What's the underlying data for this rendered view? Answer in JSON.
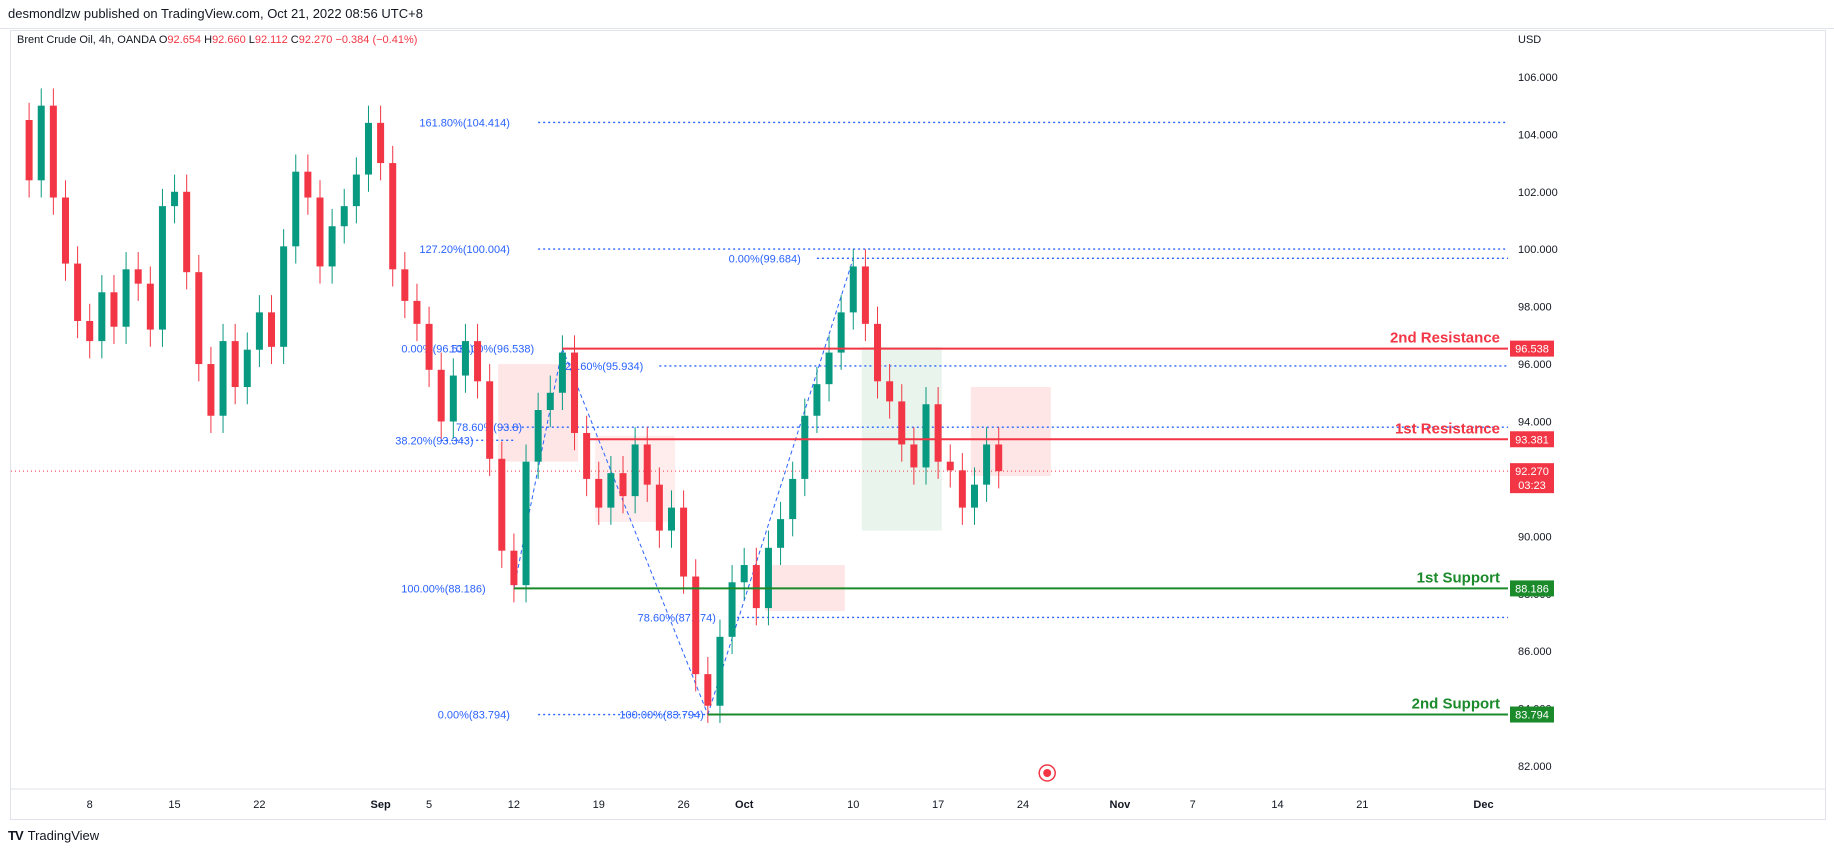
{
  "publisher_line": "desmondlzw published on TradingView.com, Oct 21, 2022 08:56 UTC+8",
  "footer_brand": "TradingView",
  "colors": {
    "up": "#089981",
    "down": "#f23645",
    "resistance": "#f23645",
    "support": "#1b8a2b",
    "fib": "#2962ff",
    "grid": "#f0f3fa"
  },
  "chart_data": {
    "type": "candlestick",
    "symbol": "Brent Crude Oil, 4h, OANDA",
    "ohlc_labels": {
      "O": "92.654",
      "H": "92.660",
      "L": "92.112",
      "C": "92.270",
      "change": "−0.384 (−0.41%)"
    },
    "currency": "USD",
    "y_ticks": [
      "106.000",
      "104.000",
      "102.000",
      "100.000",
      "98.000",
      "96.000",
      "94.000",
      "92.000",
      "90.000",
      "88.000",
      "86.000",
      "84.000",
      "82.000"
    ],
    "ylim": [
      81.2,
      107.6
    ],
    "x_ticks": [
      "8",
      "15",
      "22",
      "Sep",
      "5",
      "12",
      "19",
      "26",
      "Oct",
      "10",
      "17",
      "24",
      "Nov",
      "7",
      "14",
      "21",
      "Dec"
    ],
    "current_price": {
      "value": "92.270",
      "countdown": "03:23",
      "y": 92.27
    },
    "levels": [
      {
        "name": "2nd Resistance",
        "value": "96.538",
        "y": 96.538,
        "kind": "resistance"
      },
      {
        "name": "1st Resistance",
        "value": "93.381",
        "y": 93.381,
        "kind": "resistance"
      },
      {
        "name": "1st Support",
        "value": "88.186",
        "y": 88.186,
        "kind": "support"
      },
      {
        "name": "2nd Support",
        "value": "83.794",
        "y": 83.794,
        "kind": "support"
      }
    ],
    "fib_labels": [
      {
        "text": "161.80%(104.414)",
        "y": 104.414
      },
      {
        "text": "127.20%(100.004)",
        "y": 100.004
      },
      {
        "text": "0.00%(99.684)",
        "y": 99.684
      },
      {
        "text": "0.00%(96.538)",
        "y": 96.538
      },
      {
        "text": "100.00%(96.538)",
        "y": 96.538
      },
      {
        "text": "23.60%(95.934)",
        "y": 95.934
      },
      {
        "text": "78.60%(93.8)",
        "y": 93.8
      },
      {
        "text": "38.20%(93.343)",
        "y": 93.343
      },
      {
        "text": "100.00%(88.186)",
        "y": 88.186
      },
      {
        "text": "78.60%(87.174)",
        "y": 87.174
      },
      {
        "text": "100.00%(83.794)",
        "y": 83.794
      },
      {
        "text": "0.00%(83.794)",
        "y": 83.794
      }
    ],
    "swing_points": [
      [
        88.186,
        "Sep 12"
      ],
      [
        96.538,
        "Sep 16"
      ],
      [
        83.794,
        "Sep 28"
      ],
      [
        99.684,
        "Oct 10"
      ]
    ],
    "price_path": [
      [
        "Aug 2",
        104.5
      ],
      [
        "Aug 3",
        102.4
      ],
      [
        "Aug 4",
        105.0
      ],
      [
        "Aug 5",
        101.8
      ],
      [
        "Aug 6",
        99.5
      ],
      [
        "Aug 7",
        97.5
      ],
      [
        "Aug 8",
        96.8
      ],
      [
        "Aug 9",
        98.5
      ],
      [
        "Aug 10",
        97.3
      ],
      [
        "Aug 11",
        99.3
      ],
      [
        "Aug 12",
        98.8
      ],
      [
        "Aug 13",
        97.2
      ],
      [
        "Aug 14",
        101.5
      ],
      [
        "Aug 15",
        102.0
      ],
      [
        "Aug 16",
        99.2
      ],
      [
        "Aug 17",
        96.0
      ],
      [
        "Aug 18",
        94.2
      ],
      [
        "Aug 19",
        96.8
      ],
      [
        "Aug 20",
        95.2
      ],
      [
        "Aug 21",
        96.5
      ],
      [
        "Aug 22",
        97.8
      ],
      [
        "Aug 23",
        96.6
      ],
      [
        "Aug 24",
        100.1
      ],
      [
        "Aug 25",
        102.7
      ],
      [
        "Aug 26",
        101.8
      ],
      [
        "Aug 27",
        99.4
      ],
      [
        "Aug 28",
        100.8
      ],
      [
        "Aug 29",
        101.5
      ],
      [
        "Aug 30",
        102.6
      ],
      [
        "Aug 31",
        104.4
      ],
      [
        "Sep 1",
        103.0
      ],
      [
        "Sep 2",
        99.3
      ],
      [
        "Sep 3",
        98.2
      ],
      [
        "Sep 4",
        97.4
      ],
      [
        "Sep 5",
        95.8
      ],
      [
        "Sep 6",
        94.0
      ],
      [
        "Sep 7",
        95.6
      ],
      [
        "Sep 8",
        96.8
      ],
      [
        "Sep 9",
        95.4
      ],
      [
        "Sep 10",
        92.7
      ],
      [
        "Sep 11",
        89.5
      ],
      [
        "Sep 12",
        88.3
      ],
      [
        "Sep 13",
        92.6
      ],
      [
        "Sep 14",
        94.4
      ],
      [
        "Sep 15",
        95.0
      ],
      [
        "Sep 16",
        96.4
      ],
      [
        "Sep 17",
        93.6
      ],
      [
        "Sep 18",
        92.0
      ],
      [
        "Sep 19",
        91.0
      ],
      [
        "Sep 20",
        92.2
      ],
      [
        "Sep 21",
        91.4
      ],
      [
        "Sep 22",
        93.2
      ],
      [
        "Sep 23",
        91.8
      ],
      [
        "Sep 24",
        90.2
      ],
      [
        "Sep 25",
        91.0
      ],
      [
        "Sep 26",
        88.6
      ],
      [
        "Sep 27",
        85.2
      ],
      [
        "Sep 28",
        84.1
      ],
      [
        "Sep 29",
        86.5
      ],
      [
        "Sep 30",
        88.4
      ],
      [
        "Oct 1",
        89.0
      ],
      [
        "Oct 2",
        87.5
      ],
      [
        "Oct 3",
        89.6
      ],
      [
        "Oct 4",
        90.6
      ],
      [
        "Oct 5",
        92.0
      ],
      [
        "Oct 6",
        94.2
      ],
      [
        "Oct 7",
        95.3
      ],
      [
        "Oct 8",
        96.4
      ],
      [
        "Oct 9",
        97.8
      ],
      [
        "Oct 10",
        99.4
      ],
      [
        "Oct 11",
        97.4
      ],
      [
        "Oct 12",
        95.4
      ],
      [
        "Oct 13",
        94.7
      ],
      [
        "Oct 14",
        93.2
      ],
      [
        "Oct 15",
        92.4
      ],
      [
        "Oct 16",
        94.6
      ],
      [
        "Oct 17",
        92.6
      ],
      [
        "Oct 18",
        92.3
      ],
      [
        "Oct 19",
        91.0
      ],
      [
        "Oct 20",
        91.8
      ],
      [
        "Oct 21",
        93.2
      ],
      [
        "Oct 22",
        92.27
      ]
    ]
  }
}
